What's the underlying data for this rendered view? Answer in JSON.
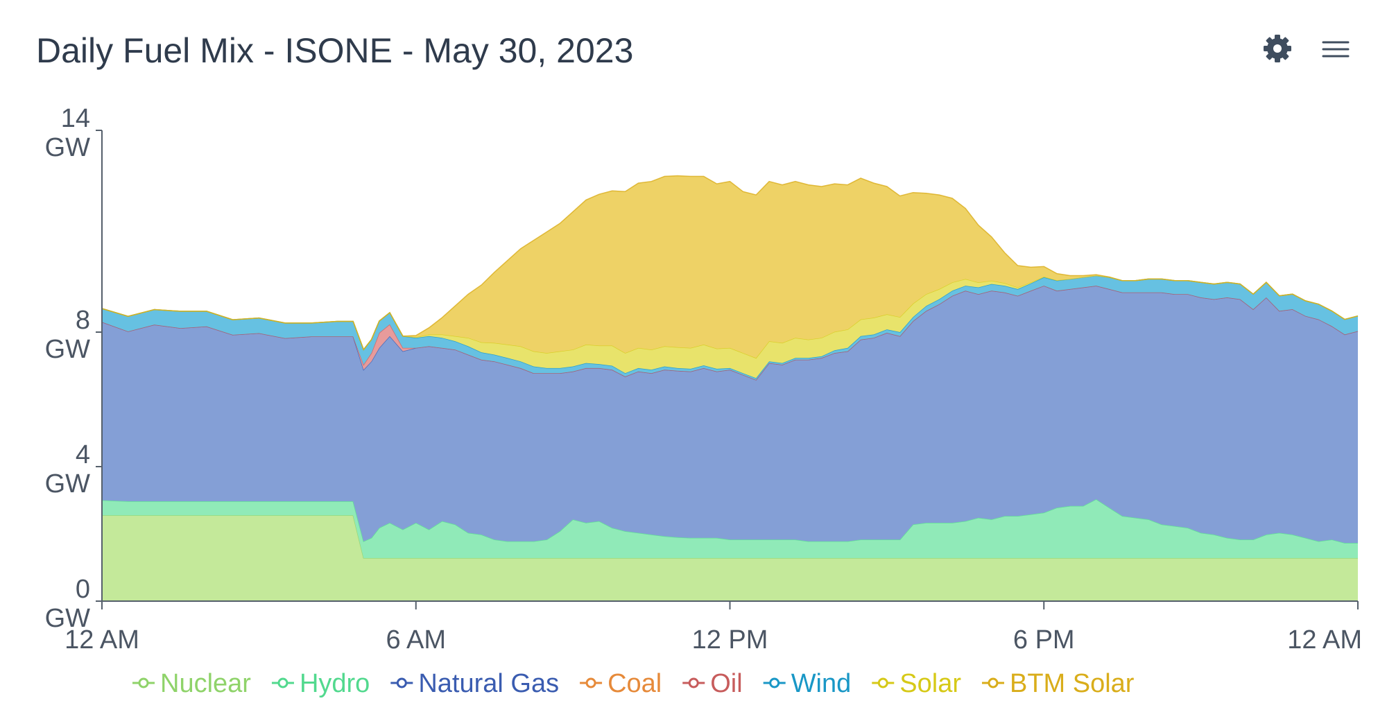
{
  "header": {
    "title": "Daily Fuel Mix - ISONE - May 30, 2023",
    "settings_icon": "gear-icon",
    "menu_icon": "hamburger-menu-icon"
  },
  "chart_data": {
    "type": "area",
    "stacked": true,
    "title": "Daily Fuel Mix - ISONE - May 30, 2023",
    "xlabel": "",
    "ylabel": "",
    "x_hours": [
      0,
      0.5,
      1,
      1.5,
      2,
      2.5,
      3,
      3.5,
      4,
      4.5,
      4.8,
      5,
      5.15,
      5.3,
      5.5,
      5.75,
      6,
      6.25,
      6.5,
      6.75,
      7,
      7.25,
      7.5,
      7.75,
      8,
      8.25,
      8.5,
      8.75,
      9,
      9.25,
      9.5,
      9.75,
      10,
      10.25,
      10.5,
      10.75,
      11,
      11.25,
      11.5,
      11.75,
      12,
      12.25,
      12.5,
      12.75,
      13,
      13.25,
      13.5,
      13.75,
      14,
      14.25,
      14.5,
      14.75,
      15,
      15.25,
      15.5,
      15.75,
      16,
      16.25,
      16.5,
      16.75,
      17,
      17.25,
      17.5,
      17.75,
      18,
      18.25,
      18.5,
      18.75,
      19,
      19.25,
      19.5,
      19.75,
      20,
      20.25,
      20.5,
      20.75,
      21,
      21.25,
      21.5,
      21.75,
      22,
      22.25,
      22.5,
      22.75,
      23,
      23.25,
      23.5,
      23.75,
      24
    ],
    "x_ticks": [
      {
        "hour": 0,
        "label": "12 AM"
      },
      {
        "hour": 6,
        "label": "6 AM"
      },
      {
        "hour": 12,
        "label": "12 PM"
      },
      {
        "hour": 18,
        "label": "6 PM"
      },
      {
        "hour": 24,
        "label": "12 AM"
      }
    ],
    "y_ticks": [
      {
        "value": 0,
        "line1": "0",
        "line2": "GW"
      },
      {
        "value": 4,
        "line1": "4",
        "line2": "GW"
      },
      {
        "value": 8,
        "line1": "8",
        "line2": "GW"
      },
      {
        "value": 14,
        "line1": "14",
        "line2": "GW"
      }
    ],
    "ylim": [
      0,
      14
    ],
    "xlim": [
      0,
      24
    ],
    "grid": false,
    "legend_position": "bottom",
    "series": [
      {
        "name": "Nuclear",
        "fill": "#c4e99a",
        "line": "#8fd36a",
        "legend_color": "#8fd36a",
        "values": [
          2.55,
          2.55,
          2.55,
          2.55,
          2.55,
          2.55,
          2.55,
          2.55,
          2.55,
          2.55,
          2.55,
          1.28,
          1.28,
          1.28,
          1.28,
          1.28,
          1.28,
          1.28,
          1.28,
          1.28,
          1.28,
          1.28,
          1.28,
          1.28,
          1.28,
          1.28,
          1.28,
          1.28,
          1.28,
          1.28,
          1.28,
          1.28,
          1.28,
          1.28,
          1.28,
          1.28,
          1.28,
          1.28,
          1.28,
          1.28,
          1.28,
          1.28,
          1.28,
          1.28,
          1.28,
          1.28,
          1.28,
          1.28,
          1.28,
          1.28,
          1.28,
          1.28,
          1.28,
          1.28,
          1.28,
          1.28,
          1.28,
          1.28,
          1.28,
          1.28,
          1.28,
          1.28,
          1.28,
          1.28,
          1.28,
          1.28,
          1.28,
          1.28,
          1.28,
          1.28,
          1.28,
          1.28,
          1.28,
          1.28,
          1.28,
          1.28,
          1.28,
          1.28,
          1.28,
          1.28,
          1.28,
          1.28,
          1.28,
          1.28,
          1.28,
          1.28,
          1.28,
          1.28,
          1.28
        ]
      },
      {
        "name": "Hydro",
        "fill": "#90eab8",
        "line": "#52d98e",
        "legend_color": "#52d98e",
        "values": [
          0.45,
          0.42,
          0.42,
          0.42,
          0.42,
          0.42,
          0.42,
          0.42,
          0.42,
          0.42,
          0.42,
          0.5,
          0.6,
          0.9,
          1.05,
          0.85,
          1.05,
          0.85,
          1.1,
          1.0,
          0.75,
          0.7,
          0.55,
          0.5,
          0.5,
          0.5,
          0.55,
          0.8,
          1.15,
          1.05,
          1.1,
          0.9,
          0.8,
          0.75,
          0.7,
          0.65,
          0.62,
          0.6,
          0.6,
          0.6,
          0.55,
          0.55,
          0.55,
          0.55,
          0.55,
          0.55,
          0.5,
          0.5,
          0.5,
          0.5,
          0.55,
          0.55,
          0.55,
          0.55,
          1.0,
          1.05,
          1.05,
          1.05,
          1.1,
          1.2,
          1.15,
          1.25,
          1.25,
          1.3,
          1.35,
          1.5,
          1.55,
          1.55,
          1.75,
          1.5,
          1.25,
          1.2,
          1.15,
          1.0,
          0.95,
          0.9,
          0.75,
          0.7,
          0.6,
          0.55,
          0.55,
          0.7,
          0.75,
          0.7,
          0.6,
          0.5,
          0.55,
          0.45,
          0.45
        ]
      },
      {
        "name": "Natural Gas",
        "fill": "#849fd6",
        "line": "#3a5cb0",
        "legend_color": "#3a5cb0",
        "values": [
          5.3,
          5.05,
          5.25,
          5.15,
          5.2,
          4.95,
          5.0,
          4.85,
          4.9,
          4.9,
          4.9,
          5.1,
          5.25,
          5.35,
          5.55,
          5.3,
          5.2,
          5.45,
          5.15,
          5.2,
          5.3,
          5.2,
          5.3,
          5.25,
          5.15,
          5.0,
          4.95,
          4.7,
          4.4,
          4.6,
          4.55,
          4.7,
          4.6,
          4.8,
          4.8,
          4.95,
          4.95,
          4.95,
          5.05,
          4.95,
          5.05,
          4.9,
          4.75,
          5.25,
          5.2,
          5.35,
          5.4,
          5.45,
          5.6,
          5.65,
          5.95,
          6.0,
          6.15,
          6.05,
          6.05,
          6.3,
          6.5,
          6.75,
          6.85,
          6.65,
          6.8,
          6.65,
          6.55,
          6.65,
          6.75,
          6.45,
          6.45,
          6.5,
          6.35,
          6.5,
          6.65,
          6.7,
          6.75,
          6.9,
          6.9,
          6.95,
          7.0,
          7.0,
          7.15,
          7.15,
          6.85,
          7.05,
          6.6,
          6.7,
          6.6,
          6.6,
          6.35,
          6.2,
          6.3
        ]
      },
      {
        "name": "Coal",
        "fill": "#f5a664",
        "line": "#e68a3a",
        "legend_color": "#e68a3a",
        "values": [
          0,
          0,
          0,
          0,
          0,
          0,
          0,
          0,
          0,
          0,
          0,
          0,
          0,
          0,
          0,
          0,
          0,
          0,
          0,
          0,
          0,
          0,
          0,
          0,
          0,
          0,
          0,
          0,
          0,
          0,
          0,
          0,
          0,
          0,
          0,
          0,
          0,
          0,
          0,
          0,
          0,
          0,
          0,
          0,
          0,
          0,
          0,
          0,
          0,
          0,
          0,
          0,
          0,
          0,
          0,
          0,
          0,
          0,
          0,
          0,
          0,
          0,
          0,
          0,
          0,
          0,
          0,
          0,
          0,
          0,
          0,
          0,
          0,
          0,
          0,
          0,
          0,
          0,
          0,
          0,
          0,
          0,
          0,
          0,
          0,
          0,
          0,
          0,
          0
        ]
      },
      {
        "name": "Oil",
        "fill": "#e79b9b",
        "line": "#c75c5c",
        "legend_color": "#c75c5c",
        "values": [
          0,
          0,
          0,
          0,
          0,
          0,
          0,
          0,
          0,
          0,
          0,
          0.15,
          0.25,
          0.45,
          0.35,
          0.1,
          0,
          0,
          0,
          0,
          0,
          0,
          0,
          0,
          0,
          0,
          0,
          0,
          0,
          0,
          0,
          0,
          0,
          0,
          0,
          0,
          0,
          0,
          0,
          0,
          0,
          0,
          0,
          0,
          0,
          0,
          0,
          0,
          0,
          0,
          0,
          0,
          0,
          0,
          0,
          0,
          0,
          0,
          0,
          0,
          0,
          0,
          0,
          0,
          0,
          0,
          0,
          0,
          0,
          0,
          0,
          0,
          0,
          0,
          0,
          0,
          0,
          0,
          0,
          0,
          0,
          0,
          0,
          0,
          0,
          0,
          0,
          0,
          0
        ]
      },
      {
        "name": "Wind",
        "fill": "#66c1e2",
        "line": "#1997c6",
        "legend_color": "#1997c6",
        "values": [
          0.4,
          0.45,
          0.45,
          0.5,
          0.45,
          0.45,
          0.45,
          0.45,
          0.4,
          0.45,
          0.45,
          0.45,
          0.4,
          0.35,
          0.35,
          0.35,
          0.3,
          0.3,
          0.3,
          0.25,
          0.25,
          0.22,
          0.2,
          0.2,
          0.2,
          0.2,
          0.15,
          0.15,
          0.15,
          0.15,
          0.12,
          0.12,
          0.1,
          0.1,
          0.1,
          0.1,
          0.08,
          0.08,
          0.08,
          0.08,
          0.05,
          0.05,
          0.05,
          0.05,
          0.05,
          0.05,
          0.05,
          0.05,
          0.08,
          0.1,
          0.1,
          0.1,
          0.1,
          0.12,
          0.12,
          0.15,
          0.15,
          0.15,
          0.15,
          0.2,
          0.2,
          0.2,
          0.2,
          0.22,
          0.25,
          0.3,
          0.3,
          0.3,
          0.3,
          0.35,
          0.35,
          0.35,
          0.4,
          0.4,
          0.4,
          0.4,
          0.45,
          0.45,
          0.45,
          0.45,
          0.45,
          0.45,
          0.45,
          0.45,
          0.45,
          0.45,
          0.45,
          0.45,
          0.45
        ]
      },
      {
        "name": "Solar",
        "fill": "#e8e36b",
        "line": "#d6c917",
        "legend_color": "#d6c917",
        "values": [
          0,
          0,
          0,
          0,
          0,
          0,
          0,
          0,
          0,
          0,
          0,
          0,
          0,
          0,
          0,
          0,
          0.02,
          0.05,
          0.1,
          0.15,
          0.25,
          0.3,
          0.35,
          0.4,
          0.45,
          0.45,
          0.45,
          0.5,
          0.5,
          0.55,
          0.55,
          0.6,
          0.6,
          0.6,
          0.6,
          0.6,
          0.62,
          0.62,
          0.62,
          0.6,
          0.6,
          0.6,
          0.6,
          0.6,
          0.6,
          0.6,
          0.55,
          0.55,
          0.55,
          0.55,
          0.5,
          0.5,
          0.45,
          0.45,
          0.4,
          0.35,
          0.3,
          0.25,
          0.2,
          0.15,
          0.1,
          0.08,
          0.05,
          0.03,
          0.02,
          0.01,
          0,
          0,
          0,
          0,
          0,
          0,
          0,
          0,
          0,
          0,
          0,
          0,
          0,
          0,
          0,
          0,
          0,
          0,
          0,
          0,
          0,
          0,
          0
        ]
      },
      {
        "name": "BTM Solar",
        "fill": "#eed266",
        "line": "#d9ad1a",
        "legend_color": "#d9ad1a",
        "values": [
          0,
          0,
          0,
          0,
          0,
          0,
          0,
          0,
          0,
          0,
          0,
          0,
          0,
          0,
          0,
          0,
          0.05,
          0.2,
          0.5,
          0.9,
          1.3,
          1.7,
          2.1,
          2.5,
          2.9,
          3.3,
          3.6,
          3.8,
          4.1,
          4.3,
          4.5,
          4.6,
          4.8,
          4.9,
          5.0,
          5.05,
          5.1,
          5.1,
          5.0,
          4.9,
          4.95,
          4.8,
          4.85,
          4.75,
          4.7,
          4.65,
          4.6,
          4.5,
          4.4,
          4.3,
          4.2,
          4.0,
          3.8,
          3.6,
          3.3,
          3.0,
          2.8,
          2.5,
          2.1,
          1.7,
          1.3,
          0.9,
          0.65,
          0.45,
          0.3,
          0.2,
          0.1,
          0.05,
          0.03,
          0.01,
          0,
          0,
          0,
          0,
          0,
          0,
          0,
          0,
          0,
          0,
          0,
          0,
          0,
          0,
          0,
          0,
          0,
          0,
          0
        ]
      }
    ]
  }
}
